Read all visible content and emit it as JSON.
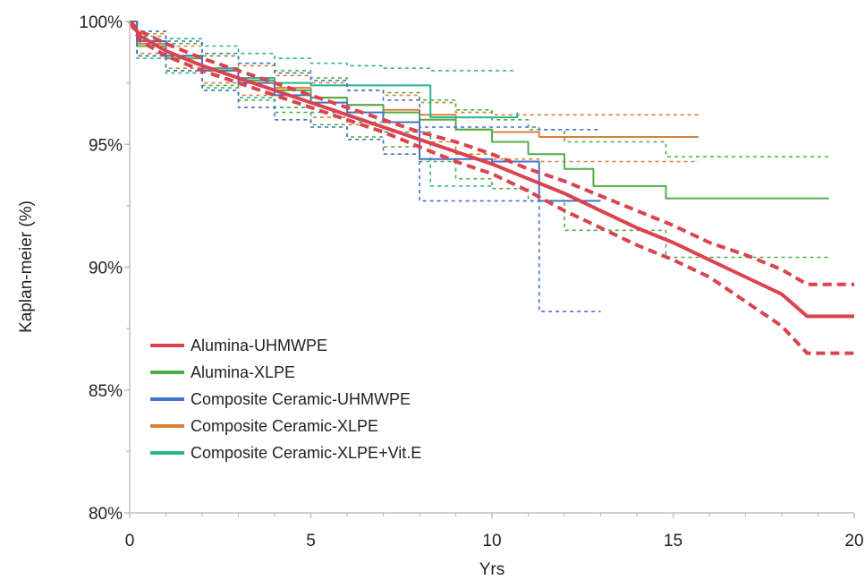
{
  "chart_data": {
    "type": "line",
    "title": "",
    "xlabel": "Yrs",
    "ylabel": "Kaplan-meier (%)",
    "xlim": [
      0,
      20
    ],
    "ylim": [
      80,
      100
    ],
    "x_ticks": [
      0,
      5,
      10,
      15,
      20
    ],
    "x_tick_labels": [
      "0",
      "5",
      "10",
      "15",
      "20"
    ],
    "y_ticks": [
      80,
      85,
      90,
      95,
      100
    ],
    "y_tick_labels": [
      "80%",
      "85%",
      "90%",
      "95%",
      "100%"
    ],
    "grid": false,
    "legend_position": "bottom-left",
    "series": [
      {
        "name": "Alumina-UHMWPE",
        "color": "#d9444f",
        "step": false,
        "estimate": [
          [
            0,
            100
          ],
          [
            0.3,
            99.4
          ],
          [
            1,
            98.8
          ],
          [
            2,
            98.2
          ],
          [
            3,
            97.7
          ],
          [
            4,
            97.2
          ],
          [
            5,
            96.7
          ],
          [
            6,
            96.2
          ],
          [
            7,
            95.7
          ],
          [
            8,
            95.2
          ],
          [
            9,
            94.7
          ],
          [
            10,
            94.2
          ],
          [
            11,
            93.6
          ],
          [
            12,
            93.0
          ],
          [
            13,
            92.3
          ],
          [
            14,
            91.6
          ],
          [
            15,
            91.0
          ],
          [
            16,
            90.3
          ],
          [
            17,
            89.6
          ],
          [
            18,
            88.9
          ],
          [
            18.7,
            88.0
          ],
          [
            20,
            88.0
          ]
        ],
        "ci_lower": [
          [
            0,
            100
          ],
          [
            0.3,
            99.2
          ],
          [
            1,
            98.6
          ],
          [
            2,
            98.0
          ],
          [
            3,
            97.5
          ],
          [
            4,
            97.0
          ],
          [
            5,
            96.5
          ],
          [
            6,
            96.0
          ],
          [
            7,
            95.5
          ],
          [
            8,
            94.9
          ],
          [
            9,
            94.3
          ],
          [
            10,
            93.8
          ],
          [
            11,
            93.1
          ],
          [
            12,
            92.3
          ],
          [
            13,
            91.6
          ],
          [
            14,
            90.9
          ],
          [
            15,
            90.3
          ],
          [
            16,
            89.6
          ],
          [
            17,
            88.6
          ],
          [
            18,
            87.6
          ],
          [
            18.7,
            86.5
          ],
          [
            20,
            86.5
          ]
        ],
        "ci_upper": [
          [
            0,
            100
          ],
          [
            0.3,
            99.6
          ],
          [
            1,
            99.1
          ],
          [
            2,
            98.5
          ],
          [
            3,
            98.0
          ],
          [
            4,
            97.5
          ],
          [
            5,
            97.0
          ],
          [
            6,
            96.5
          ],
          [
            7,
            96.0
          ],
          [
            8,
            95.5
          ],
          [
            9,
            95.1
          ],
          [
            10,
            94.6
          ],
          [
            11,
            94.0
          ],
          [
            12,
            93.5
          ],
          [
            13,
            92.9
          ],
          [
            14,
            92.3
          ],
          [
            15,
            91.7
          ],
          [
            16,
            91.0
          ],
          [
            17,
            90.5
          ],
          [
            18,
            89.9
          ],
          [
            18.7,
            89.3
          ],
          [
            20,
            89.3
          ]
        ]
      },
      {
        "name": "Alumina-XLPE",
        "color": "#4fae48",
        "step": true,
        "estimate": [
          [
            0,
            100
          ],
          [
            0.2,
            99.0
          ],
          [
            1,
            98.5
          ],
          [
            2,
            98.0
          ],
          [
            3,
            97.6
          ],
          [
            4,
            97.2
          ],
          [
            5,
            96.9
          ],
          [
            6,
            96.6
          ],
          [
            7,
            96.3
          ],
          [
            8,
            96.0
          ],
          [
            9,
            95.6
          ],
          [
            10,
            95.1
          ],
          [
            11,
            94.6
          ],
          [
            12,
            94.0
          ],
          [
            12.8,
            93.3
          ],
          [
            14.8,
            92.8
          ],
          [
            19.3,
            92.8
          ]
        ],
        "ci_lower": [
          [
            0,
            100
          ],
          [
            0.2,
            98.6
          ],
          [
            1,
            98.0
          ],
          [
            2,
            97.4
          ],
          [
            3,
            96.8
          ],
          [
            4,
            96.3
          ],
          [
            5,
            95.8
          ],
          [
            6,
            95.3
          ],
          [
            7,
            94.9
          ],
          [
            8,
            94.3
          ],
          [
            9,
            93.6
          ],
          [
            10,
            93.2
          ],
          [
            11,
            92.7
          ],
          [
            12,
            91.5
          ],
          [
            14.8,
            90.4
          ],
          [
            19.3,
            90.4
          ]
        ],
        "ci_upper": [
          [
            0,
            100
          ],
          [
            0.2,
            99.4
          ],
          [
            1,
            99.1
          ],
          [
            2,
            98.6
          ],
          [
            3,
            98.3
          ],
          [
            4,
            98.0
          ],
          [
            5,
            97.7
          ],
          [
            6,
            97.4
          ],
          [
            7,
            97.1
          ],
          [
            8,
            96.8
          ],
          [
            9,
            96.4
          ],
          [
            10,
            96.0
          ],
          [
            11,
            95.6
          ],
          [
            12,
            95.1
          ],
          [
            14.8,
            94.5
          ],
          [
            19.3,
            94.5
          ]
        ]
      },
      {
        "name": "Composite Ceramic-UHMWPE",
        "color": "#4472c4",
        "step": true,
        "estimate": [
          [
            0,
            100
          ],
          [
            0.2,
            99.2
          ],
          [
            1,
            98.6
          ],
          [
            2,
            98.0
          ],
          [
            3,
            97.5
          ],
          [
            4,
            97.0
          ],
          [
            5,
            96.7
          ],
          [
            6,
            96.3
          ],
          [
            7,
            95.9
          ],
          [
            8,
            94.4
          ],
          [
            10,
            94.3
          ],
          [
            11.3,
            92.7
          ],
          [
            13,
            92.7
          ]
        ],
        "ci_lower": [
          [
            0,
            100
          ],
          [
            0.2,
            98.6
          ],
          [
            1,
            98.0
          ],
          [
            2,
            97.2
          ],
          [
            3,
            96.5
          ],
          [
            4,
            96.0
          ],
          [
            5,
            95.7
          ],
          [
            6,
            95.2
          ],
          [
            7,
            94.6
          ],
          [
            8,
            92.7
          ],
          [
            11.3,
            88.2
          ],
          [
            13,
            88.2
          ]
        ],
        "ci_upper": [
          [
            0,
            100
          ],
          [
            0.2,
            99.6
          ],
          [
            1,
            99.2
          ],
          [
            2,
            98.7
          ],
          [
            3,
            98.3
          ],
          [
            4,
            97.9
          ],
          [
            5,
            97.6
          ],
          [
            6,
            97.2
          ],
          [
            7,
            96.8
          ],
          [
            8,
            95.7
          ],
          [
            11.3,
            95.6
          ],
          [
            13,
            95.6
          ]
        ]
      },
      {
        "name": "Composite Ceramic-XLPE",
        "color": "#d9803b",
        "step": true,
        "estimate": [
          [
            0,
            100
          ],
          [
            0.2,
            99.1
          ],
          [
            1,
            98.6
          ],
          [
            2,
            98.1
          ],
          [
            3,
            97.7
          ],
          [
            4,
            97.3
          ],
          [
            5,
            96.9
          ],
          [
            6,
            96.6
          ],
          [
            7,
            96.4
          ],
          [
            8,
            96.2
          ],
          [
            9,
            95.6
          ],
          [
            10,
            95.5
          ],
          [
            11.3,
            95.3
          ],
          [
            15.7,
            95.3
          ]
        ],
        "ci_lower": [
          [
            0,
            100
          ],
          [
            0.2,
            98.7
          ],
          [
            1,
            98.1
          ],
          [
            2,
            97.5
          ],
          [
            3,
            97.0
          ],
          [
            4,
            96.5
          ],
          [
            5,
            96.1
          ],
          [
            6,
            95.8
          ],
          [
            7,
            95.5
          ],
          [
            8,
            95.1
          ],
          [
            9,
            94.6
          ],
          [
            10,
            94.4
          ],
          [
            11.3,
            94.3
          ],
          [
            15.7,
            94.3
          ]
        ],
        "ci_upper": [
          [
            0,
            100
          ],
          [
            0.2,
            99.5
          ],
          [
            1,
            99.0
          ],
          [
            2,
            98.6
          ],
          [
            3,
            98.2
          ],
          [
            4,
            97.8
          ],
          [
            5,
            97.5
          ],
          [
            6,
            97.2
          ],
          [
            7,
            97.0
          ],
          [
            8,
            96.7
          ],
          [
            9,
            96.3
          ],
          [
            10,
            96.2
          ],
          [
            11.3,
            96.2
          ],
          [
            15.7,
            96.2
          ]
        ]
      },
      {
        "name": "Composite Ceramic-XLPE+Vit.E",
        "color": "#2bb591",
        "step": true,
        "estimate": [
          [
            0,
            100
          ],
          [
            0.2,
            99.2
          ],
          [
            1,
            98.6
          ],
          [
            2,
            98.1
          ],
          [
            3,
            97.7
          ],
          [
            4,
            97.5
          ],
          [
            5,
            97.4
          ],
          [
            8.3,
            96.1
          ],
          [
            10.7,
            96.3
          ]
        ],
        "ci_lower": [
          [
            0,
            100
          ],
          [
            0.2,
            98.5
          ],
          [
            1,
            97.9
          ],
          [
            2,
            97.3
          ],
          [
            3,
            96.9
          ],
          [
            4,
            96.5
          ],
          [
            5,
            96.3
          ],
          [
            6,
            95.9
          ],
          [
            7,
            95.5
          ],
          [
            8.3,
            93.3
          ],
          [
            9,
            93.3
          ],
          [
            10,
            93.2
          ]
        ],
        "ci_upper": [
          [
            0,
            100
          ],
          [
            0.2,
            99.6
          ],
          [
            1,
            99.3
          ],
          [
            2,
            99.0
          ],
          [
            3,
            98.7
          ],
          [
            4,
            98.5
          ],
          [
            5,
            98.3
          ],
          [
            6,
            98.2
          ],
          [
            7,
            98.1
          ],
          [
            8.3,
            98.0
          ],
          [
            10.7,
            98.0
          ]
        ]
      }
    ]
  }
}
